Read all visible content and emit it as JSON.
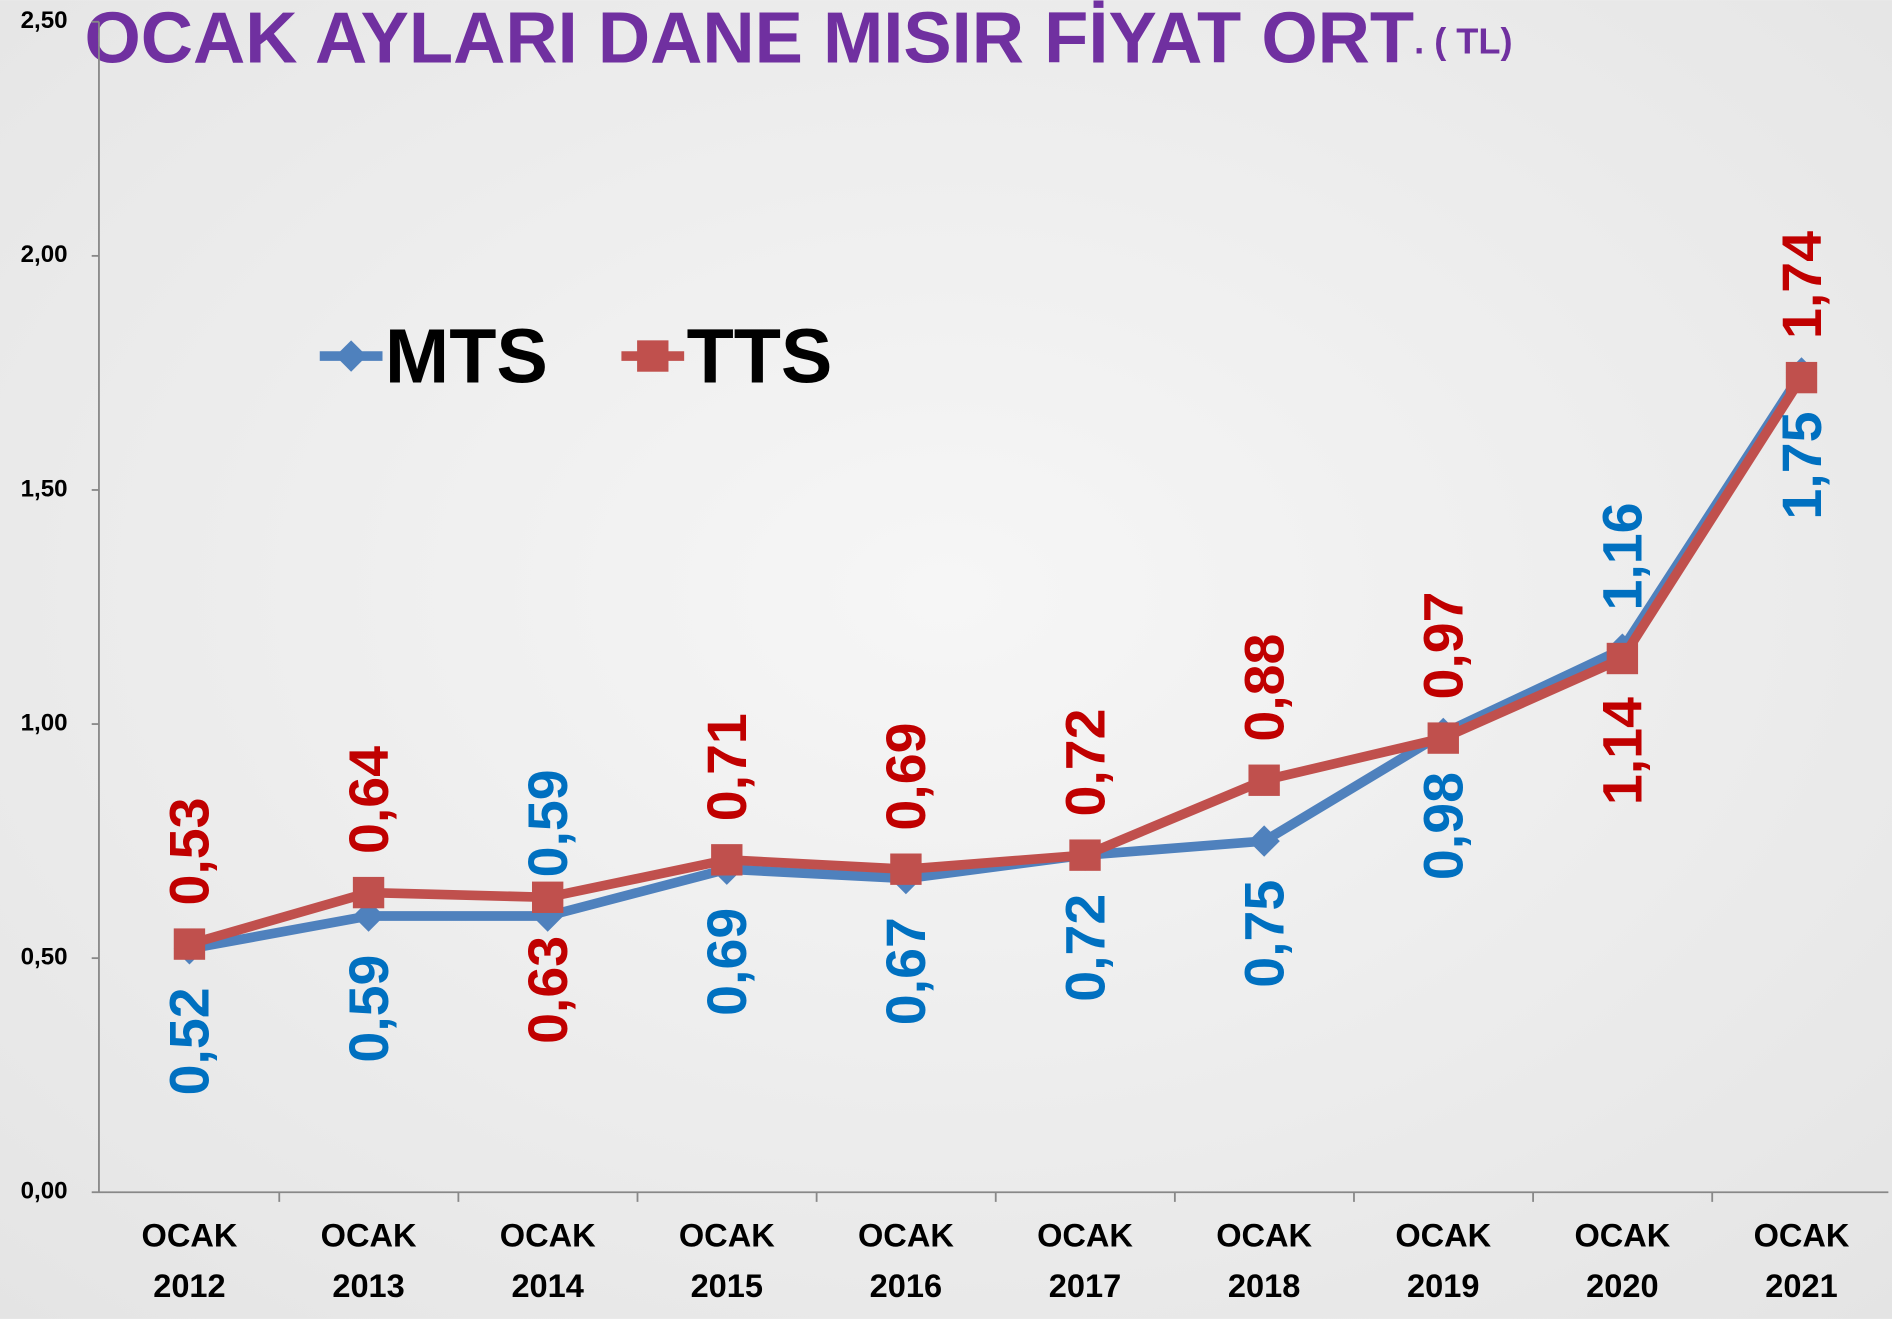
{
  "chart_data": {
    "type": "line",
    "title": "OCAK AYLARI DANE MISIR FİYAT ORT",
    "subtitle": ". ( TL)",
    "categories": [
      "OCAK 2012",
      "OCAK 2013",
      "OCAK 2014",
      "OCAK 2015",
      "OCAK 2016",
      "OCAK 2017",
      "OCAK 2018",
      "OCAK 2019",
      "OCAK 2020",
      "OCAK 2021"
    ],
    "series": [
      {
        "name": "MTS",
        "color": "#4f81bd",
        "label_color": "#0070c0",
        "marker": "diamond",
        "values": [
          0.52,
          0.59,
          0.59,
          0.69,
          0.67,
          0.72,
          0.75,
          0.98,
          1.16,
          1.75
        ],
        "value_labels": [
          "0,52",
          "0,59",
          "0,59",
          "0,69",
          "0,67",
          "0,72",
          "0,75",
          "0,98",
          "1,16",
          "1,75"
        ]
      },
      {
        "name": "TTS",
        "color": "#c0504d",
        "label_color": "#c00000",
        "marker": "square",
        "values": [
          0.53,
          0.64,
          0.63,
          0.71,
          0.69,
          0.72,
          0.88,
          0.97,
          1.14,
          1.74
        ],
        "value_labels": [
          "0,53",
          "0,64",
          "0,63",
          "0,71",
          "0,69",
          "0,72",
          "0,88",
          "0,97",
          "1,14",
          "1,74"
        ]
      }
    ],
    "ylim": [
      0,
      2.5
    ],
    "yticks": [
      {
        "value": 0,
        "label": "0,00"
      },
      {
        "value": 0.5,
        "label": "0,50"
      },
      {
        "value": 1,
        "label": "1,00"
      },
      {
        "value": 1.5,
        "label": "1,50"
      },
      {
        "value": 2,
        "label": "2,00"
      },
      {
        "value": 2.5,
        "label": "2,50"
      }
    ],
    "grid": false
  }
}
